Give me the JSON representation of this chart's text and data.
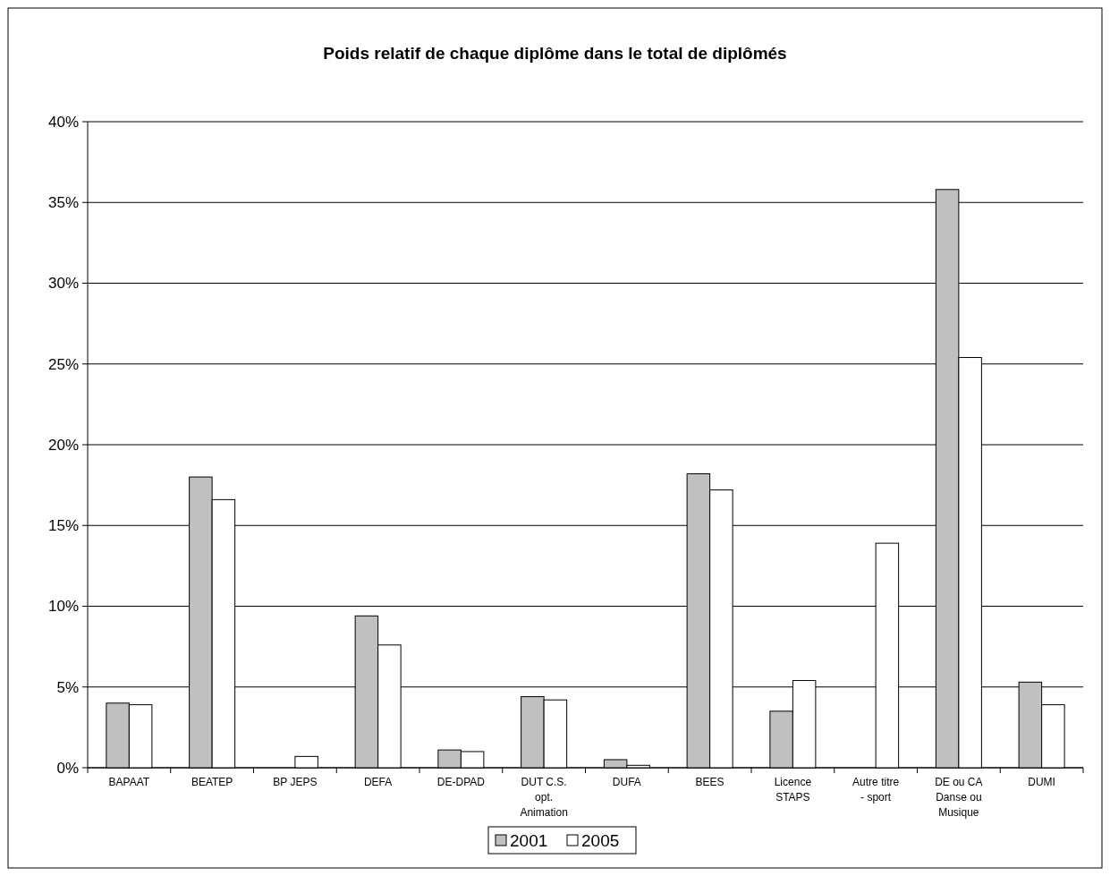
{
  "chart_data": {
    "type": "bar",
    "title": "Poids relatif de chaque diplôme dans le total de diplômés",
    "categories": [
      "BAPAAT",
      "BEATEP",
      "BP JEPS",
      "DEFA",
      "DE-DPAD",
      "DUT C.S. opt. Animation",
      "DUFA",
      "BEES",
      "Licence STAPS",
      "Autre titre - sport",
      "DE ou CA Danse ou Musique",
      "DUMI"
    ],
    "series": [
      {
        "name": "2001",
        "color": "#c0c0c0",
        "values": [
          4.0,
          18.0,
          0,
          9.4,
          1.1,
          4.4,
          0.5,
          18.2,
          3.5,
          0,
          35.8,
          5.3
        ]
      },
      {
        "name": "2005",
        "color": "#ffffff",
        "values": [
          3.9,
          16.6,
          0.7,
          7.6,
          1.0,
          4.2,
          0.15,
          17.2,
          5.4,
          13.9,
          25.4,
          3.9
        ]
      }
    ],
    "ylim": [
      0,
      40
    ],
    "yticks": [
      {
        "value": 0,
        "label": "0%"
      },
      {
        "value": 5,
        "label": "5%"
      },
      {
        "value": 10,
        "label": "10%"
      },
      {
        "value": 15,
        "label": "15%"
      },
      {
        "value": 20,
        "label": "20%"
      },
      {
        "value": 25,
        "label": "25%"
      },
      {
        "value": 30,
        "label": "30%"
      },
      {
        "value": 35,
        "label": "35%"
      },
      {
        "value": 40,
        "label": "40%"
      }
    ],
    "grid": "y",
    "legend": "bottom"
  }
}
